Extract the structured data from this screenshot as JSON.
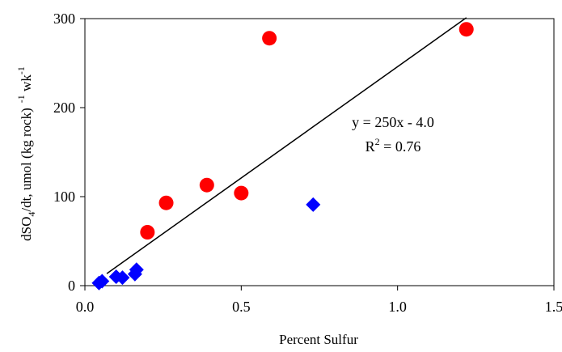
{
  "chart_data": {
    "type": "scatter",
    "xlabel": "Percent Sulfur",
    "ylabel": {
      "base": "dSO",
      "sub": "4",
      "rest": "/dt, umol (kg rock)",
      "sup1": "-1",
      "rest2": " wk",
      "sup2": "-1"
    },
    "xlim": [
      0,
      1.5
    ],
    "ylim": [
      0,
      300
    ],
    "x_ticks": [
      "0.0",
      "0.5",
      "1.0",
      "1.5"
    ],
    "y_ticks": [
      "0",
      "100",
      "200",
      "300"
    ],
    "grid": false,
    "legend": "none",
    "series": [
      {
        "marker": "circle",
        "color": "#ff0000",
        "points": [
          {
            "x": 0.2,
            "y": 60
          },
          {
            "x": 0.26,
            "y": 93
          },
          {
            "x": 0.39,
            "y": 113
          },
          {
            "x": 0.5,
            "y": 104
          },
          {
            "x": 0.59,
            "y": 278
          },
          {
            "x": 1.22,
            "y": 288
          }
        ]
      },
      {
        "marker": "diamond",
        "color": "#0000ff",
        "points": [
          {
            "x": 0.045,
            "y": 3
          },
          {
            "x": 0.055,
            "y": 5
          },
          {
            "x": 0.1,
            "y": 10
          },
          {
            "x": 0.12,
            "y": 9
          },
          {
            "x": 0.16,
            "y": 13
          },
          {
            "x": 0.165,
            "y": 18
          },
          {
            "x": 0.73,
            "y": 91
          }
        ]
      }
    ],
    "trendline": {
      "x_start": 0.07,
      "x_end": 1.22,
      "slope": 250,
      "intercept": -4.0,
      "color": "#000000"
    },
    "annotations": {
      "equation": "y = 250x - 4.0",
      "r2_prefix": "R",
      "r2_sup": "2",
      "r2_rest": " = 0.76"
    }
  }
}
